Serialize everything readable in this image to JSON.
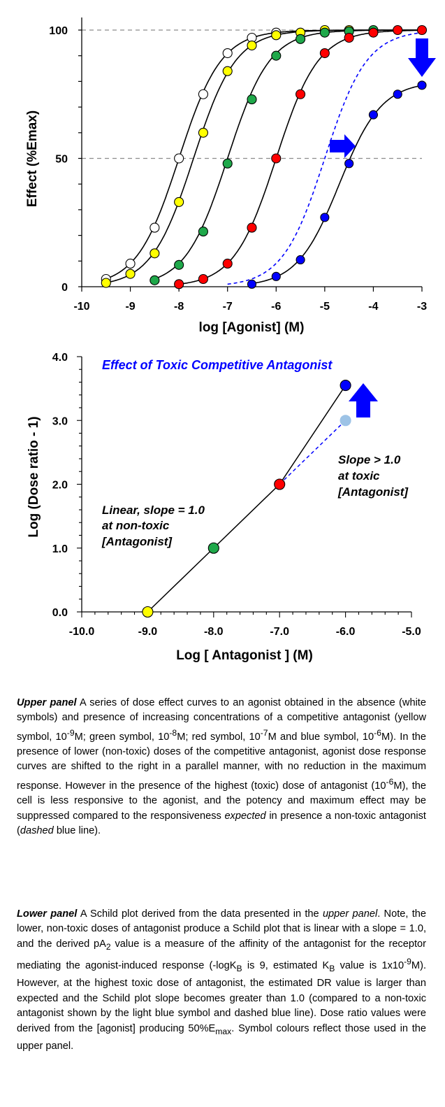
{
  "colors": {
    "white": "#ffffff",
    "yellow": "#ffff00",
    "green": "#1fa84a",
    "red": "#ff0000",
    "blue": "#0000ff",
    "lightblue": "#9dc3e6",
    "annotation": "#0000ff"
  },
  "chart_data": [
    {
      "type": "line",
      "title": "",
      "xlabel": "log [Agonist] (M)",
      "ylabel": "Effect (%Emax)",
      "xlim": [
        -10,
        -3
      ],
      "ylim": [
        0,
        100
      ],
      "xticks": [
        "-10",
        "-9",
        "-8",
        "-7",
        "-6",
        "-5",
        "-4",
        "-3"
      ],
      "yticks": [
        "0",
        "50",
        "100"
      ],
      "reference_lines": [
        50,
        100
      ],
      "series": [
        {
          "color": "white",
          "ec50": -8.0,
          "emax": 100,
          "x": [
            -9.5,
            -9.0,
            -8.5,
            -8.0,
            -7.5,
            -7.0,
            -6.5,
            -6.0
          ],
          "y": [
            3,
            9,
            23,
            50,
            75,
            91,
            97,
            99
          ]
        },
        {
          "color": "yellow",
          "ec50": -7.7,
          "emax": 100,
          "x": [
            -9.5,
            -9.0,
            -8.5,
            -8.0,
            -7.5,
            -7.0,
            -6.5,
            -6.0,
            -5.5,
            -5.0,
            -4.5
          ],
          "y": [
            1.5,
            5,
            13,
            33,
            60,
            84,
            94,
            98,
            99,
            100,
            100
          ]
        },
        {
          "color": "green",
          "ec50": -7.0,
          "emax": 100,
          "x": [
            -8.5,
            -8.0,
            -7.5,
            -7.0,
            -6.5,
            -6.0,
            -5.5,
            -5.0,
            -4.5,
            -4.0
          ],
          "y": [
            2.5,
            8.5,
            21.5,
            48,
            73,
            90,
            96.5,
            99,
            99.5,
            100
          ]
        },
        {
          "color": "red",
          "ec50": -6.0,
          "emax": 100,
          "x": [
            -8.0,
            -7.5,
            -7.0,
            -6.5,
            -6.0,
            -5.5,
            -5.0,
            -4.5,
            -4.0,
            -3.5,
            -3.0
          ],
          "y": [
            1,
            3,
            9,
            23,
            50,
            75,
            91,
            97,
            99,
            100,
            100
          ]
        },
        {
          "color": "blue",
          "ec50": -4.7,
          "emax": 80,
          "x": [
            -6.5,
            -6.0,
            -5.5,
            -5.0,
            -4.5,
            -4.0,
            -3.5,
            -3.0
          ],
          "y": [
            1,
            4,
            10.5,
            27,
            48,
            67,
            75,
            78.5
          ]
        },
        {
          "color": "blue",
          "dashed": true,
          "ec50": -5.0,
          "emax": 100,
          "x": [],
          "y": []
        }
      ]
    },
    {
      "type": "scatter",
      "title": "Effect of Toxic Competitive Antagonist",
      "xlabel": "Log [ Antagonist ]  (M)",
      "ylabel": "Log (Dose ratio - 1)",
      "xlim": [
        -10,
        -5
      ],
      "ylim": [
        0,
        4
      ],
      "xticks": [
        "-10.0",
        "-9.0",
        "-8.0",
        "-7.0",
        "-6.0",
        "-5.0"
      ],
      "yticks": [
        "0.0",
        "1.0",
        "2.0",
        "3.0",
        "4.0"
      ],
      "points": [
        {
          "x": -9.0,
          "y": 0.0,
          "color": "yellow"
        },
        {
          "x": -8.0,
          "y": 1.0,
          "color": "green"
        },
        {
          "x": -7.0,
          "y": 2.0,
          "color": "red"
        },
        {
          "x": -6.0,
          "y": 3.55,
          "color": "blue"
        },
        {
          "x": -6.0,
          "y": 3.0,
          "color": "lightblue"
        }
      ],
      "annotations": {
        "linear": [
          "Linear, slope = 1.0",
          "at non-toxic",
          "[Antagonist]"
        ],
        "slope": [
          "Slope > 1.0",
          "at toxic",
          "[Antagonist]"
        ]
      }
    }
  ],
  "captions": {
    "upper": {
      "lead": "Upper panel",
      "parts": [
        "  A series of dose effect curves to an agonist obtained in the absence (white symbols) and presence of increasing concentrations of a competitive antagonist (yellow symbol, 10",
        "-9",
        "M; green symbol, 10",
        "-8",
        "M; red symbol, 10",
        "-7",
        "M and blue symbol, 10",
        "-6",
        "M).  In the presence of lower (non-toxic) doses of the competitive antagonist, agonist dose response curves are shifted to the right in a parallel manner, with no reduction in the maximum response. However in the presence of the highest (toxic) dose of antagonist (10",
        "-6",
        "M), the cell is less responsive to the agonist, and the potency and maximum effect may be suppressed compared to the responsiveness ",
        "expected",
        " in presence a non-toxic antagonist (",
        "dashed",
        " blue line)."
      ]
    },
    "lower": {
      "lead": "Lower panel",
      "parts": [
        " A Schild plot derived from the data presented in the ",
        "upper panel",
        ". Note, the lower, non-toxic doses of antagonist produce a Schild plot that is linear with a slope = 1.0, and the derived pA",
        "2",
        " value is a measure of the affinity of the antagonist for the receptor mediating the agonist-induced response (-logK",
        "B",
        " is 9, estimated K",
        "B",
        " value is 1x10",
        "-9",
        "M).  However, at the highest toxic dose of antagonist, the estimated DR value is larger than expected and the Schild plot slope becomes greater than 1.0 (compared to a non-toxic antagonist shown by the light blue symbol and dashed blue line). Dose ratio values were derived from the [agonist] producing 50%E",
        "max",
        ".  Symbol colours reflect those used in the upper panel."
      ]
    }
  }
}
